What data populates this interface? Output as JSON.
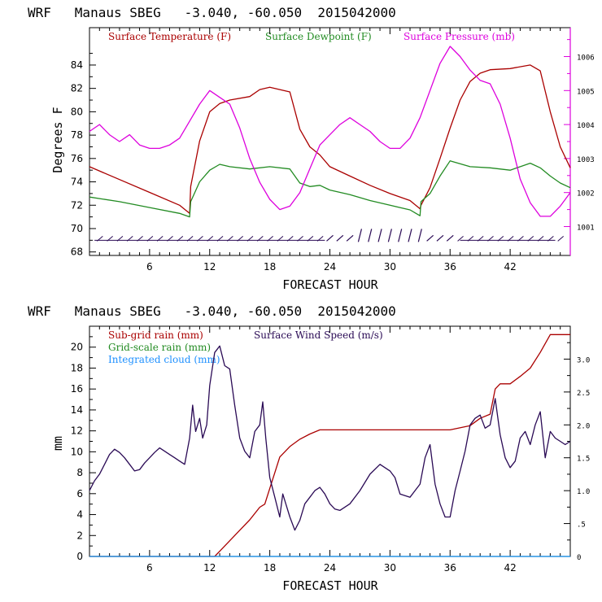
{
  "chart_data": [
    {
      "type": "line",
      "title": "WRF   Manaus SBEG   -3.040, -60.050  2015042000",
      "xlabel": "FORECAST HOUR",
      "ylabel": "Degrees F",
      "xlim": [
        0,
        48
      ],
      "ylim": [
        67.7,
        87.2
      ],
      "y2lim": [
        1000.15,
        1006.85
      ],
      "x_ticks": [
        6,
        12,
        18,
        24,
        30,
        36,
        42
      ],
      "y_ticks": [
        68,
        70,
        72,
        74,
        76,
        78,
        80,
        82,
        84
      ],
      "y2_ticks": [
        1001,
        1002,
        1003,
        1004,
        1005,
        1006
      ],
      "legend_position": "top-left",
      "colors": {
        "temperature": "#aa0000",
        "dewpoint": "#228b22",
        "pressure": "#dd00dd",
        "wind_barbs": "#2a0a55"
      },
      "series": [
        {
          "name": "Surface Temperature (F)",
          "axis": "left",
          "color": "#aa0000",
          "x": [
            0,
            3,
            6,
            9,
            10,
            10.1,
            11,
            12,
            13,
            14,
            16,
            17,
            18,
            19,
            20,
            21,
            22,
            23,
            24,
            26,
            28,
            30,
            32,
            33,
            33.1,
            34,
            35,
            36,
            37,
            38,
            39,
            40,
            42,
            44,
            45,
            46,
            47,
            48
          ],
          "y": [
            75.3,
            74.2,
            73.1,
            72.0,
            71.3,
            73.6,
            77.5,
            80.0,
            80.7,
            81.0,
            81.3,
            81.9,
            82.1,
            81.9,
            81.7,
            78.5,
            77.0,
            76.3,
            75.3,
            74.5,
            73.7,
            73.0,
            72.4,
            71.7,
            72.0,
            73.5,
            76.0,
            78.6,
            81.0,
            82.6,
            83.3,
            83.6,
            83.7,
            84.0,
            83.5,
            80.0,
            77.0,
            75.2
          ]
        },
        {
          "name": "Surface Dewpoint (F)",
          "axis": "left",
          "color": "#228b22",
          "x": [
            0,
            3,
            6,
            9,
            10,
            10.1,
            11,
            12,
            13,
            14,
            16,
            18,
            20,
            21,
            22,
            23,
            24,
            26,
            28,
            30,
            32,
            33,
            33.1,
            34,
            35,
            36,
            38,
            40,
            42,
            44,
            45,
            46,
            47,
            48
          ],
          "y": [
            72.7,
            72.3,
            71.8,
            71.3,
            71.0,
            72.3,
            74.0,
            75.0,
            75.5,
            75.3,
            75.1,
            75.3,
            75.1,
            73.9,
            73.6,
            73.7,
            73.3,
            72.9,
            72.4,
            72.0,
            71.6,
            71.1,
            72.3,
            73.0,
            74.5,
            75.8,
            75.3,
            75.2,
            75.0,
            75.6,
            75.2,
            74.5,
            73.9,
            73.5
          ]
        },
        {
          "name": "Surface Pressure (mb)",
          "axis": "right",
          "color": "#dd00dd",
          "x": [
            0,
            1,
            2,
            3,
            4,
            5,
            6,
            7,
            8,
            9,
            10,
            11,
            12,
            13,
            14,
            15,
            16,
            17,
            18,
            19,
            20,
            21,
            22,
            23,
            24,
            25,
            26,
            27,
            28,
            29,
            30,
            31,
            32,
            33,
            34,
            35,
            36,
            37,
            38,
            39,
            40,
            41,
            42,
            43,
            44,
            45,
            46,
            47,
            48
          ],
          "y": [
            1003.8,
            1004.0,
            1003.7,
            1003.5,
            1003.7,
            1003.4,
            1003.3,
            1003.3,
            1003.4,
            1003.6,
            1004.1,
            1004.6,
            1005.0,
            1004.8,
            1004.6,
            1003.9,
            1003.0,
            1002.3,
            1001.8,
            1001.5,
            1001.6,
            1002.0,
            1002.7,
            1003.4,
            1003.7,
            1004.0,
            1004.2,
            1004.0,
            1003.8,
            1003.5,
            1003.3,
            1003.3,
            1003.6,
            1004.2,
            1005.0,
            1005.8,
            1006.3,
            1006.0,
            1005.6,
            1005.3,
            1005.2,
            1004.6,
            1003.6,
            1002.4,
            1001.7,
            1001.3,
            1001.3,
            1001.6,
            1002.0
          ]
        }
      ]
    },
    {
      "type": "line",
      "title": "WRF   Manaus SBEG   -3.040, -60.050  2015042000",
      "xlabel": "FORECAST HOUR",
      "ylabel": "mm",
      "xlim": [
        0,
        48
      ],
      "ylim": [
        0,
        22
      ],
      "y2lim": [
        0,
        3.5
      ],
      "x_ticks": [
        6,
        12,
        18,
        24,
        30,
        36,
        42
      ],
      "y_ticks": [
        0,
        2,
        4,
        6,
        8,
        10,
        12,
        14,
        16,
        18,
        20
      ],
      "y2_ticks": [
        0,
        0.5,
        1.0,
        1.5,
        2.0,
        2.5,
        3.0
      ],
      "y2_tick_labels": [
        "0",
        ".5",
        "1.0",
        "1.5",
        "2.0",
        "2.5",
        "3.0"
      ],
      "legend_position": "top-left",
      "colors": {
        "subgrid": "#aa0000",
        "gridscale": "#228b22",
        "cloud": "#1e90ff",
        "wind": "#2a0a55"
      },
      "series": [
        {
          "name": "Sub-grid rain (mm)",
          "axis": "left",
          "color": "#aa0000",
          "x": [
            0,
            12.5,
            13,
            14,
            15,
            16,
            17,
            17.5,
            18,
            18.5,
            19,
            20,
            21,
            22,
            23,
            24,
            36,
            38,
            39,
            40,
            40.5,
            41,
            42,
            43,
            44,
            45,
            46,
            48
          ],
          "y": [
            0,
            0,
            0.5,
            1.5,
            2.5,
            3.5,
            4.7,
            5.0,
            6.5,
            8.0,
            9.5,
            10.5,
            11.2,
            11.7,
            12.1,
            12.1,
            12.1,
            12.5,
            13.2,
            13.6,
            16.0,
            16.5,
            16.5,
            17.2,
            18.0,
            19.5,
            21.2,
            21.2
          ]
        },
        {
          "name": "Grid-scale rain (mm)",
          "axis": "left",
          "color": "#228b22",
          "x": [
            0,
            48
          ],
          "y": [
            0,
            0
          ]
        },
        {
          "name": "Integrated cloud (mm)",
          "axis": "left",
          "color": "#1e90ff",
          "x": [
            0,
            48
          ],
          "y": [
            0,
            0
          ]
        },
        {
          "name": "Surface Wind Speed (m/s)",
          "axis": "right",
          "color": "#2a0a55",
          "x": [
            0,
            0.5,
            1,
            1.5,
            2,
            2.5,
            3,
            3.5,
            4,
            4.5,
            5,
            5.5,
            6,
            6.5,
            7,
            7.5,
            8,
            8.5,
            9,
            9.5,
            10,
            10.3,
            10.6,
            11,
            11.3,
            11.7,
            12,
            12.5,
            13,
            13.5,
            14,
            14.5,
            15,
            15.5,
            16,
            16.5,
            17,
            17.3,
            17.6,
            18,
            18.5,
            19,
            19.3,
            19.7,
            20,
            20.5,
            21,
            21.5,
            22,
            22.5,
            23,
            23.5,
            24,
            24.5,
            25,
            26,
            27,
            28,
            29,
            30,
            30.5,
            31,
            32,
            33,
            33.5,
            34,
            34.5,
            35,
            35.5,
            36,
            36.5,
            37,
            37.5,
            38,
            38.5,
            39,
            39.5,
            40,
            40.5,
            41,
            41.5,
            42,
            42.5,
            43,
            43.5,
            44,
            44.5,
            45,
            45.5,
            46,
            46.5,
            47,
            47.5,
            48
          ],
          "y": [
            1.0,
            1.15,
            1.25,
            1.4,
            1.55,
            1.63,
            1.58,
            1.5,
            1.4,
            1.3,
            1.32,
            1.42,
            1.5,
            1.58,
            1.65,
            1.6,
            1.55,
            1.5,
            1.45,
            1.4,
            1.8,
            2.3,
            1.9,
            2.1,
            1.8,
            2.0,
            2.6,
            3.1,
            3.2,
            2.9,
            2.85,
            2.3,
            1.8,
            1.6,
            1.5,
            1.9,
            2.0,
            2.35,
            1.8,
            1.2,
            0.9,
            0.6,
            0.95,
            0.75,
            0.6,
            0.4,
            0.55,
            0.8,
            0.9,
            1.0,
            1.05,
            0.95,
            0.8,
            0.72,
            0.7,
            0.8,
            1.0,
            1.25,
            1.4,
            1.3,
            1.2,
            0.95,
            0.9,
            1.1,
            1.5,
            1.7,
            1.1,
            0.8,
            0.6,
            0.6,
            1.0,
            1.3,
            1.6,
            2.0,
            2.1,
            2.15,
            1.95,
            2.0,
            2.4,
            1.85,
            1.5,
            1.35,
            1.45,
            1.8,
            1.9,
            1.7,
            2.0,
            2.2,
            1.5,
            1.9,
            1.8,
            1.75,
            1.7,
            1.75
          ]
        }
      ]
    }
  ]
}
